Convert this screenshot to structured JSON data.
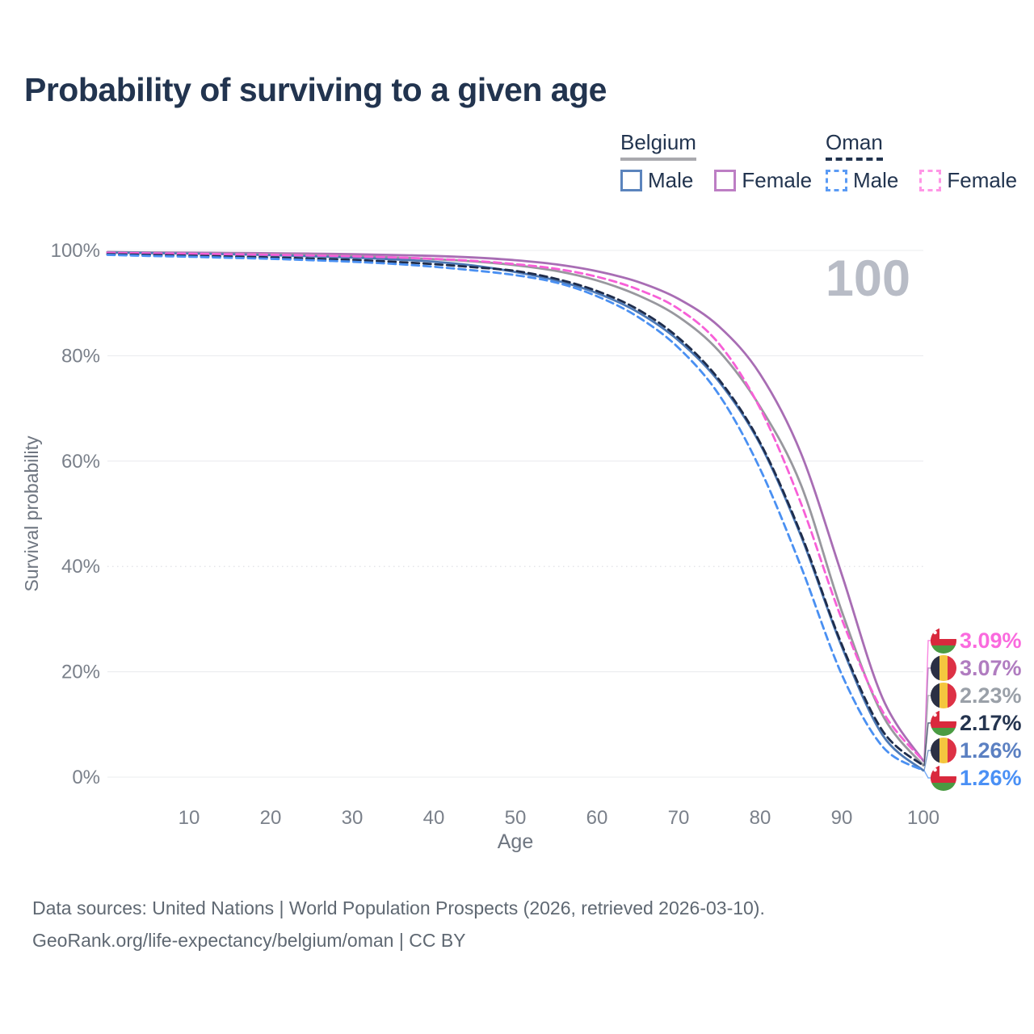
{
  "title": "Probability of surviving to a given age",
  "legend": {
    "groups": [
      {
        "label": "Belgium",
        "line_style": "solid",
        "line_color": "#a9a9ae",
        "items": [
          {
            "label": "Male",
            "color": "#5b84bd"
          },
          {
            "label": "Female",
            "color": "#bd7ec4"
          }
        ]
      },
      {
        "label": "Oman",
        "line_style": "dashed",
        "line_color": "#22344f",
        "items": [
          {
            "label": "Male",
            "color": "#5b9bf5"
          },
          {
            "label": "Female",
            "color": "#ff96e6"
          }
        ]
      }
    ]
  },
  "chart_data": {
    "type": "line",
    "title": "Probability of surviving to a given age",
    "xlabel": "Age",
    "ylabel": "Survival probability",
    "xlim": [
      0,
      100
    ],
    "ylim": [
      0,
      100
    ],
    "grid": "horizontal",
    "hover_age": "100",
    "x_ticks": [
      {
        "v": 10,
        "label": "10"
      },
      {
        "v": 20,
        "label": "20"
      },
      {
        "v": 30,
        "label": "30"
      },
      {
        "v": 40,
        "label": "40"
      },
      {
        "v": 50,
        "label": "50"
      },
      {
        "v": 60,
        "label": "60"
      },
      {
        "v": 70,
        "label": "70"
      },
      {
        "v": 80,
        "label": "80"
      },
      {
        "v": 90,
        "label": "90"
      },
      {
        "v": 100,
        "label": "100"
      }
    ],
    "y_ticks": [
      {
        "v": 0,
        "label": "0%"
      },
      {
        "v": 20,
        "label": "20%"
      },
      {
        "v": 40,
        "label": "40%"
      },
      {
        "v": 60,
        "label": "60%"
      },
      {
        "v": 80,
        "label": "80%"
      },
      {
        "v": 100,
        "label": "100%"
      }
    ],
    "x": [
      0,
      5,
      10,
      15,
      20,
      25,
      30,
      35,
      40,
      45,
      50,
      55,
      60,
      65,
      70,
      75,
      80,
      85,
      90,
      95,
      100
    ],
    "series": [
      {
        "name": "Belgium Female",
        "country": "Belgium",
        "sex": "Female",
        "style": "solid",
        "color": "#a86db4",
        "values": [
          99.7,
          99.62,
          99.57,
          99.52,
          99.46,
          99.38,
          99.28,
          99.14,
          98.95,
          98.65,
          98.15,
          97.35,
          96.05,
          94.05,
          90.8,
          85.5,
          76.5,
          61.5,
          38.5,
          15.0,
          3.07
        ]
      },
      {
        "name": "Belgium Both sexes",
        "country": "Belgium",
        "sex": "Both",
        "style": "solid",
        "color": "#98989e",
        "values": [
          99.65,
          99.55,
          99.48,
          99.4,
          99.3,
          99.15,
          98.95,
          98.7,
          98.35,
          97.9,
          97.2,
          96.1,
          94.3,
          91.5,
          87.4,
          80.8,
          70.3,
          55.5,
          31.5,
          11.8,
          2.23
        ]
      },
      {
        "name": "Belgium Male",
        "country": "Belgium",
        "sex": "Male",
        "style": "solid",
        "color": "#4d79b5",
        "values": [
          99.6,
          99.5,
          99.4,
          99.28,
          99.1,
          98.9,
          98.65,
          98.32,
          97.85,
          97.1,
          95.9,
          94.3,
          91.9,
          88.3,
          82.9,
          75.0,
          63.2,
          45.8,
          24.8,
          8.0,
          1.26
        ]
      },
      {
        "name": "Oman Female",
        "country": "Oman",
        "sex": "Female",
        "style": "dashed",
        "color": "#f75fd7",
        "values": [
          99.55,
          99.45,
          99.38,
          99.28,
          99.18,
          99.05,
          98.9,
          98.68,
          98.4,
          98.0,
          97.4,
          96.5,
          95.0,
          92.6,
          88.9,
          82.2,
          70.0,
          52.0,
          30.0,
          12.5,
          3.09
        ]
      },
      {
        "name": "Oman Both sexes",
        "country": "Oman",
        "sex": "Both",
        "style": "dashed",
        "color": "#1f2d4c",
        "values": [
          99.3,
          99.15,
          99.0,
          98.85,
          98.68,
          98.45,
          98.2,
          97.85,
          97.4,
          96.8,
          96.1,
          94.6,
          92.3,
          88.8,
          83.4,
          75.4,
          63.5,
          46.2,
          25.2,
          8.8,
          2.17
        ]
      },
      {
        "name": "Oman Male",
        "country": "Oman",
        "sex": "Male",
        "style": "dashed",
        "color": "#4a90f2",
        "values": [
          99.15,
          98.95,
          98.8,
          98.6,
          98.4,
          98.15,
          97.85,
          97.45,
          96.9,
          96.2,
          95.3,
          93.9,
          91.3,
          87.4,
          81.5,
          72.5,
          58.5,
          40.0,
          19.5,
          5.8,
          1.26
        ]
      }
    ],
    "end_labels": [
      {
        "series": "Oman Female",
        "flag": "oman",
        "value": "3.09%",
        "color": "#fa6ade"
      },
      {
        "series": "Belgium Female",
        "flag": "belgium",
        "value": "3.07%",
        "color": "#b07cc0"
      },
      {
        "series": "Belgium Both sexes",
        "flag": "belgium",
        "value": "2.23%",
        "color": "#9aa0a8"
      },
      {
        "series": "Oman Both sexes",
        "flag": "oman",
        "value": "2.17%",
        "color": "#24344f"
      },
      {
        "series": "Belgium Male",
        "flag": "belgium",
        "value": "1.26%",
        "color": "#5b80c2"
      },
      {
        "series": "Oman Male",
        "flag": "oman",
        "value": "1.26%",
        "color": "#4a90f5"
      }
    ]
  },
  "footer": {
    "line1": "Data sources: United Nations | World Population Prospects (2026, retrieved 2026-03-10).",
    "line2": "GeoRank.org/life-expectancy/belgium/oman | CC BY"
  }
}
